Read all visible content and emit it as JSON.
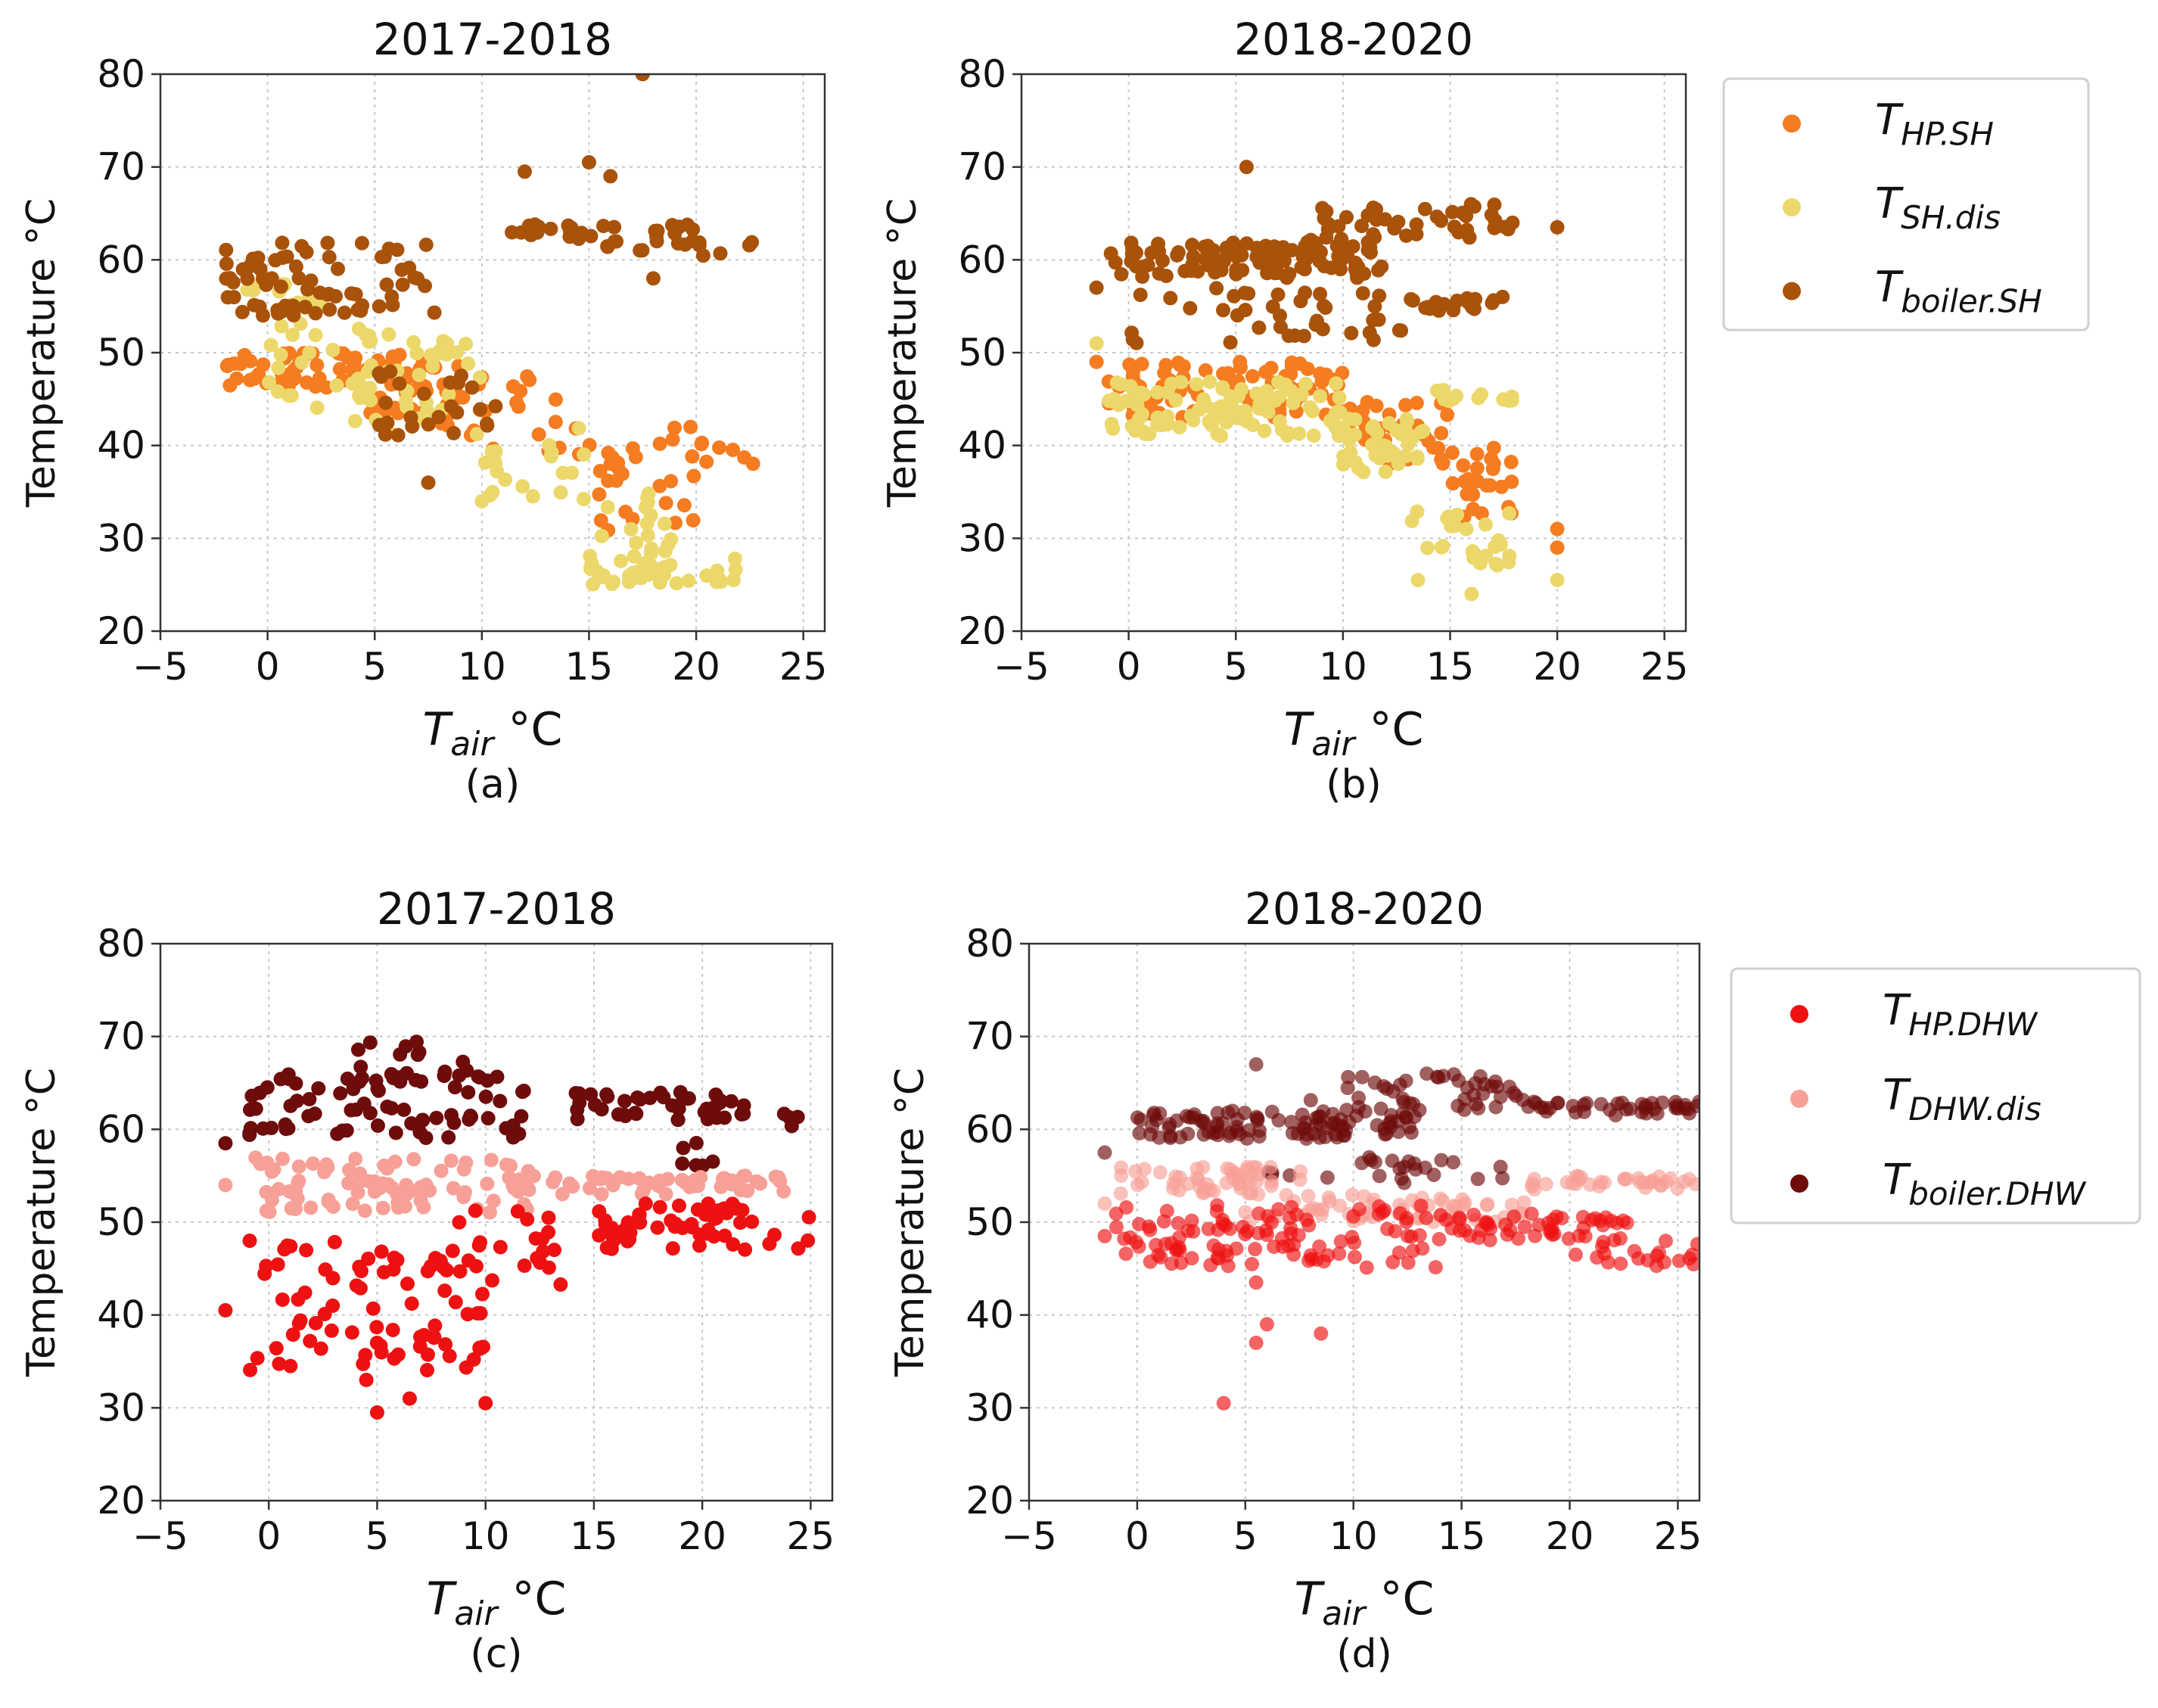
{
  "figure": {
    "panel_labels": [
      "(a)",
      "(b)",
      "(c)",
      "(d)"
    ],
    "legends": [
      {
        "name": "sh-legend",
        "entries": [
          {
            "key": "T",
            "sub": "HP.SH",
            "color": "#f57c20",
            "alpha": 1.0
          },
          {
            "key": "T",
            "sub": "SH.dis",
            "color": "#ecd86a",
            "alpha": 1.0
          },
          {
            "key": "T",
            "sub": "boiler.SH",
            "color": "#a8520a",
            "alpha": 1.0
          }
        ]
      },
      {
        "name": "dhw-legend",
        "entries": [
          {
            "key": "T",
            "sub": "HP.DHW",
            "color": "#ee1111",
            "alpha": 1.0
          },
          {
            "key": "T",
            "sub": "DHW.dis",
            "color": "#f7a097",
            "alpha": 1.0
          },
          {
            "key": "T",
            "sub": "boiler.DHW",
            "color": "#6e0b0b",
            "alpha": 1.0
          }
        ]
      }
    ]
  },
  "chart_data": [
    {
      "type": "scatter",
      "title": "2017-2018",
      "panel_label": "(a)",
      "xlabel": "T_air °C",
      "ylabel": "Temperature °C",
      "xlim": [
        -5,
        26
      ],
      "ylim": [
        20,
        80
      ],
      "xticks": [
        -5,
        0,
        5,
        10,
        15,
        20,
        25
      ],
      "yticks": [
        20,
        30,
        40,
        50,
        60,
        70,
        80
      ],
      "grid": true,
      "series": [
        {
          "name": "T_HP.SH",
          "color": "#f57c20",
          "alpha": 1.0,
          "clusters": [
            {
              "x": [
                -2,
                4
              ],
              "y": [
                46,
                50
              ],
              "n": 45
            },
            {
              "x": [
                4,
                9
              ],
              "y": [
                43,
                50
              ],
              "n": 40
            },
            {
              "x": [
                8,
                14
              ],
              "y": [
                39,
                48
              ],
              "n": 25
            },
            {
              "x": [
                14,
                20
              ],
              "y": [
                30,
                42
              ],
              "n": 30
            },
            {
              "x": [
                18,
                23
              ],
              "y": [
                38,
                41
              ],
              "n": 8
            }
          ]
        },
        {
          "name": "T_SH.dis",
          "color": "#ecd86a",
          "alpha": 1.0,
          "clusters": [
            {
              "x": [
                -1,
                2
              ],
              "y": [
                55,
                59
              ],
              "n": 12
            },
            {
              "x": [
                0,
                5
              ],
              "y": [
                44,
                56
              ],
              "n": 30
            },
            {
              "x": [
                4,
                10
              ],
              "y": [
                41,
                52
              ],
              "n": 35
            },
            {
              "x": [
                10,
                15
              ],
              "y": [
                34,
                42
              ],
              "n": 20
            },
            {
              "x": [
                15,
                19
              ],
              "y": [
                26,
                35
              ],
              "n": 25
            },
            {
              "x": [
                15,
                23
              ],
              "y": [
                25,
                28
              ],
              "n": 30
            }
          ]
        },
        {
          "name": "T_boiler.SH",
          "color": "#a8520a",
          "alpha": 1.0,
          "clusters": [
            {
              "x": [
                -2,
                8
              ],
              "y": [
                54,
                62
              ],
              "n": 70
            },
            {
              "x": [
                5,
                11
              ],
              "y": [
                41,
                48
              ],
              "n": 25
            },
            {
              "x": [
                10,
                14
              ],
              "y": [
                62,
                64
              ],
              "n": 8
            },
            {
              "x": [
                14,
                20
              ],
              "y": [
                61,
                64
              ],
              "n": 30
            },
            {
              "x": [
                20,
                23
              ],
              "y": [
                60,
                62
              ],
              "n": 6
            }
          ]
        }
      ],
      "outliers": [
        {
          "series": "T_boiler.SH",
          "x": 7.5,
          "y": 36
        },
        {
          "series": "T_boiler.SH",
          "x": 12,
          "y": 69.5
        },
        {
          "series": "T_boiler.SH",
          "x": 15,
          "y": 70.5
        },
        {
          "series": "T_boiler.SH",
          "x": 16,
          "y": 69
        },
        {
          "series": "T_boiler.SH",
          "x": 17.5,
          "y": 80
        },
        {
          "series": "T_boiler.SH",
          "x": 18,
          "y": 58
        },
        {
          "series": "T_SH.dis",
          "x": 10,
          "y": 34
        }
      ]
    },
    {
      "type": "scatter",
      "title": "2018-2020",
      "panel_label": "(b)",
      "xlabel": "T_air °C",
      "ylabel": "Temperature °C",
      "xlim": [
        -5,
        26
      ],
      "ylim": [
        20,
        80
      ],
      "xticks": [
        -5,
        0,
        5,
        10,
        15,
        20,
        25
      ],
      "yticks": [
        20,
        30,
        40,
        50,
        60,
        70,
        80
      ],
      "grid": true,
      "series": [
        {
          "name": "T_boiler.SH",
          "color": "#a8520a",
          "alpha": 1.0,
          "clusters": [
            {
              "x": [
                -1,
                12
              ],
              "y": [
                58,
                62
              ],
              "n": 110
            },
            {
              "x": [
                0,
                13
              ],
              "y": [
                51,
                57
              ],
              "n": 40
            },
            {
              "x": [
                8,
                18
              ],
              "y": [
                62,
                66
              ],
              "n": 45
            },
            {
              "x": [
                13,
                17.5
              ],
              "y": [
                54.5,
                56
              ],
              "n": 20
            }
          ]
        },
        {
          "name": "T_HP.SH",
          "color": "#f57c20",
          "alpha": 1.0,
          "clusters": [
            {
              "x": [
                -1,
                10
              ],
              "y": [
                43,
                49
              ],
              "n": 80
            },
            {
              "x": [
                10,
                15
              ],
              "y": [
                38,
                45
              ],
              "n": 35
            },
            {
              "x": [
                15,
                18
              ],
              "y": [
                32,
                41
              ],
              "n": 25
            }
          ]
        },
        {
          "name": "T_SH.dis",
          "color": "#ecd86a",
          "alpha": 1.0,
          "clusters": [
            {
              "x": [
                -1,
                10
              ],
              "y": [
                41,
                47
              ],
              "n": 110
            },
            {
              "x": [
                10,
                14
              ],
              "y": [
                37,
                43
              ],
              "n": 40
            },
            {
              "x": [
                14,
                18
              ],
              "y": [
                44,
                46
              ],
              "n": 15
            },
            {
              "x": [
                13,
                18
              ],
              "y": [
                27,
                33
              ],
              "n": 18
            },
            {
              "x": [
                16,
                18
              ],
              "y": [
                27,
                30
              ],
              "n": 8
            }
          ]
        }
      ],
      "outliers": [
        {
          "series": "T_boiler.SH",
          "x": 5.5,
          "y": 70
        },
        {
          "series": "T_boiler.SH",
          "x": 20,
          "y": 63.5
        },
        {
          "series": "T_boiler.SH",
          "x": -1.5,
          "y": 57
        },
        {
          "series": "T_HP.SH",
          "x": 20,
          "y": 31
        },
        {
          "series": "T_HP.SH",
          "x": 20,
          "y": 29
        },
        {
          "series": "T_SH.dis",
          "x": 20,
          "y": 25.5
        },
        {
          "series": "T_SH.dis",
          "x": 13.5,
          "y": 25.5
        },
        {
          "series": "T_SH.dis",
          "x": 16,
          "y": 24
        },
        {
          "series": "T_SH.dis",
          "x": -1.5,
          "y": 51
        },
        {
          "series": "T_HP.SH",
          "x": -1.5,
          "y": 49
        }
      ]
    },
    {
      "type": "scatter",
      "title": "2017-2018",
      "panel_label": "(c)",
      "xlabel": "T_air °C",
      "ylabel": "Temperature °C",
      "xlim": [
        -5,
        26
      ],
      "ylim": [
        20,
        80
      ],
      "xticks": [
        -5,
        0,
        5,
        10,
        15,
        20,
        25
      ],
      "yticks": [
        20,
        30,
        40,
        50,
        60,
        70,
        80
      ],
      "grid": true,
      "series": [
        {
          "name": "T_boiler.DHW",
          "color": "#6e0b0b",
          "alpha": 1.0,
          "clusters": [
            {
              "x": [
                -1,
                12
              ],
              "y": [
                59,
                66
              ],
              "n": 80
            },
            {
              "x": [
                4,
                10
              ],
              "y": [
                66,
                70
              ],
              "n": 12
            },
            {
              "x": [
                14,
                22
              ],
              "y": [
                61,
                64
              ],
              "n": 45
            },
            {
              "x": [
                19,
                21
              ],
              "y": [
                56,
                59
              ],
              "n": 6
            },
            {
              "x": [
                23,
                25
              ],
              "y": [
                60,
                62
              ],
              "n": 4
            }
          ]
        },
        {
          "name": "T_DHW.dis",
          "color": "#f7a097",
          "alpha": 1.0,
          "clusters": [
            {
              "x": [
                -1,
                12
              ],
              "y": [
                51,
                57
              ],
              "n": 90
            },
            {
              "x": [
                12,
                25
              ],
              "y": [
                53,
                55
              ],
              "n": 50
            }
          ]
        },
        {
          "name": "T_HP.DHW",
          "color": "#ee1111",
          "alpha": 1.0,
          "clusters": [
            {
              "x": [
                -1,
                10
              ],
              "y": [
                34,
                48
              ],
              "n": 80
            },
            {
              "x": [
                8,
                14
              ],
              "y": [
                43,
                52
              ],
              "n": 20
            },
            {
              "x": [
                15,
                22
              ],
              "y": [
                47,
                52
              ],
              "n": 55
            },
            {
              "x": [
                22,
                25
              ],
              "y": [
                47,
                51
              ],
              "n": 6
            }
          ]
        }
      ],
      "outliers": [
        {
          "series": "T_boiler.DHW",
          "x": -2,
          "y": 58.5
        },
        {
          "series": "T_DHW.dis",
          "x": -2,
          "y": 54
        },
        {
          "series": "T_HP.DHW",
          "x": -2,
          "y": 40.5
        },
        {
          "series": "T_HP.DHW",
          "x": 5,
          "y": 29.5
        },
        {
          "series": "T_HP.DHW",
          "x": 6.5,
          "y": 31
        },
        {
          "series": "T_HP.DHW",
          "x": 10,
          "y": 30.5
        },
        {
          "series": "T_HP.DHW",
          "x": 4.5,
          "y": 33
        },
        {
          "series": "T_HP.DHW",
          "x": 1,
          "y": 34.5
        }
      ]
    },
    {
      "type": "scatter",
      "title": "2018-2020",
      "panel_label": "(d)",
      "xlabel": "T_air °C",
      "ylabel": "Temperature °C",
      "xlim": [
        -5,
        26
      ],
      "ylim": [
        20,
        80
      ],
      "xticks": [
        -5,
        0,
        5,
        10,
        15,
        20,
        25
      ],
      "yticks": [
        20,
        30,
        40,
        50,
        60,
        70,
        80
      ],
      "grid": true,
      "series": [
        {
          "name": "T_boiler.DHW",
          "color": "#6e0b0b",
          "alpha": 0.65,
          "clusters": [
            {
              "x": [
                0,
                13
              ],
              "y": [
                59,
                62
              ],
              "n": 100
            },
            {
              "x": [
                8,
                18
              ],
              "y": [
                62,
                66
              ],
              "n": 45
            },
            {
              "x": [
                18,
                26
              ],
              "y": [
                61.5,
                63
              ],
              "n": 40
            },
            {
              "x": [
                6,
                17
              ],
              "y": [
                54,
                57
              ],
              "n": 25
            }
          ]
        },
        {
          "name": "T_DHW.dis",
          "color": "#f7a097",
          "alpha": 0.65,
          "clusters": [
            {
              "x": [
                -1,
                8
              ],
              "y": [
                53,
                56
              ],
              "n": 50
            },
            {
              "x": [
                5,
                18
              ],
              "y": [
                50,
                53
              ],
              "n": 60
            },
            {
              "x": [
                18,
                26
              ],
              "y": [
                53.5,
                55
              ],
              "n": 35
            }
          ]
        },
        {
          "name": "T_HP.DHW",
          "color": "#ee1111",
          "alpha": 0.65,
          "clusters": [
            {
              "x": [
                -1,
                14
              ],
              "y": [
                45,
                52
              ],
              "n": 110
            },
            {
              "x": [
                14,
                23
              ],
              "y": [
                48,
                51
              ],
              "n": 50
            },
            {
              "x": [
                20,
                26
              ],
              "y": [
                45,
                48
              ],
              "n": 20
            }
          ]
        }
      ],
      "outliers": [
        {
          "series": "T_HP.DHW",
          "x": 4,
          "y": 30.5
        },
        {
          "series": "T_HP.DHW",
          "x": 5.5,
          "y": 37
        },
        {
          "series": "T_HP.DHW",
          "x": 6,
          "y": 39
        },
        {
          "series": "T_HP.DHW",
          "x": 8.5,
          "y": 38
        },
        {
          "series": "T_HP.DHW",
          "x": 5.5,
          "y": 43.5
        },
        {
          "series": "T_boiler.DHW",
          "x": 5.5,
          "y": 67
        },
        {
          "series": "T_boiler.DHW",
          "x": -1.5,
          "y": 57.5
        },
        {
          "series": "T_DHW.dis",
          "x": -1.5,
          "y": 52
        },
        {
          "series": "T_HP.DHW",
          "x": -1.5,
          "y": 48.5
        }
      ]
    }
  ]
}
